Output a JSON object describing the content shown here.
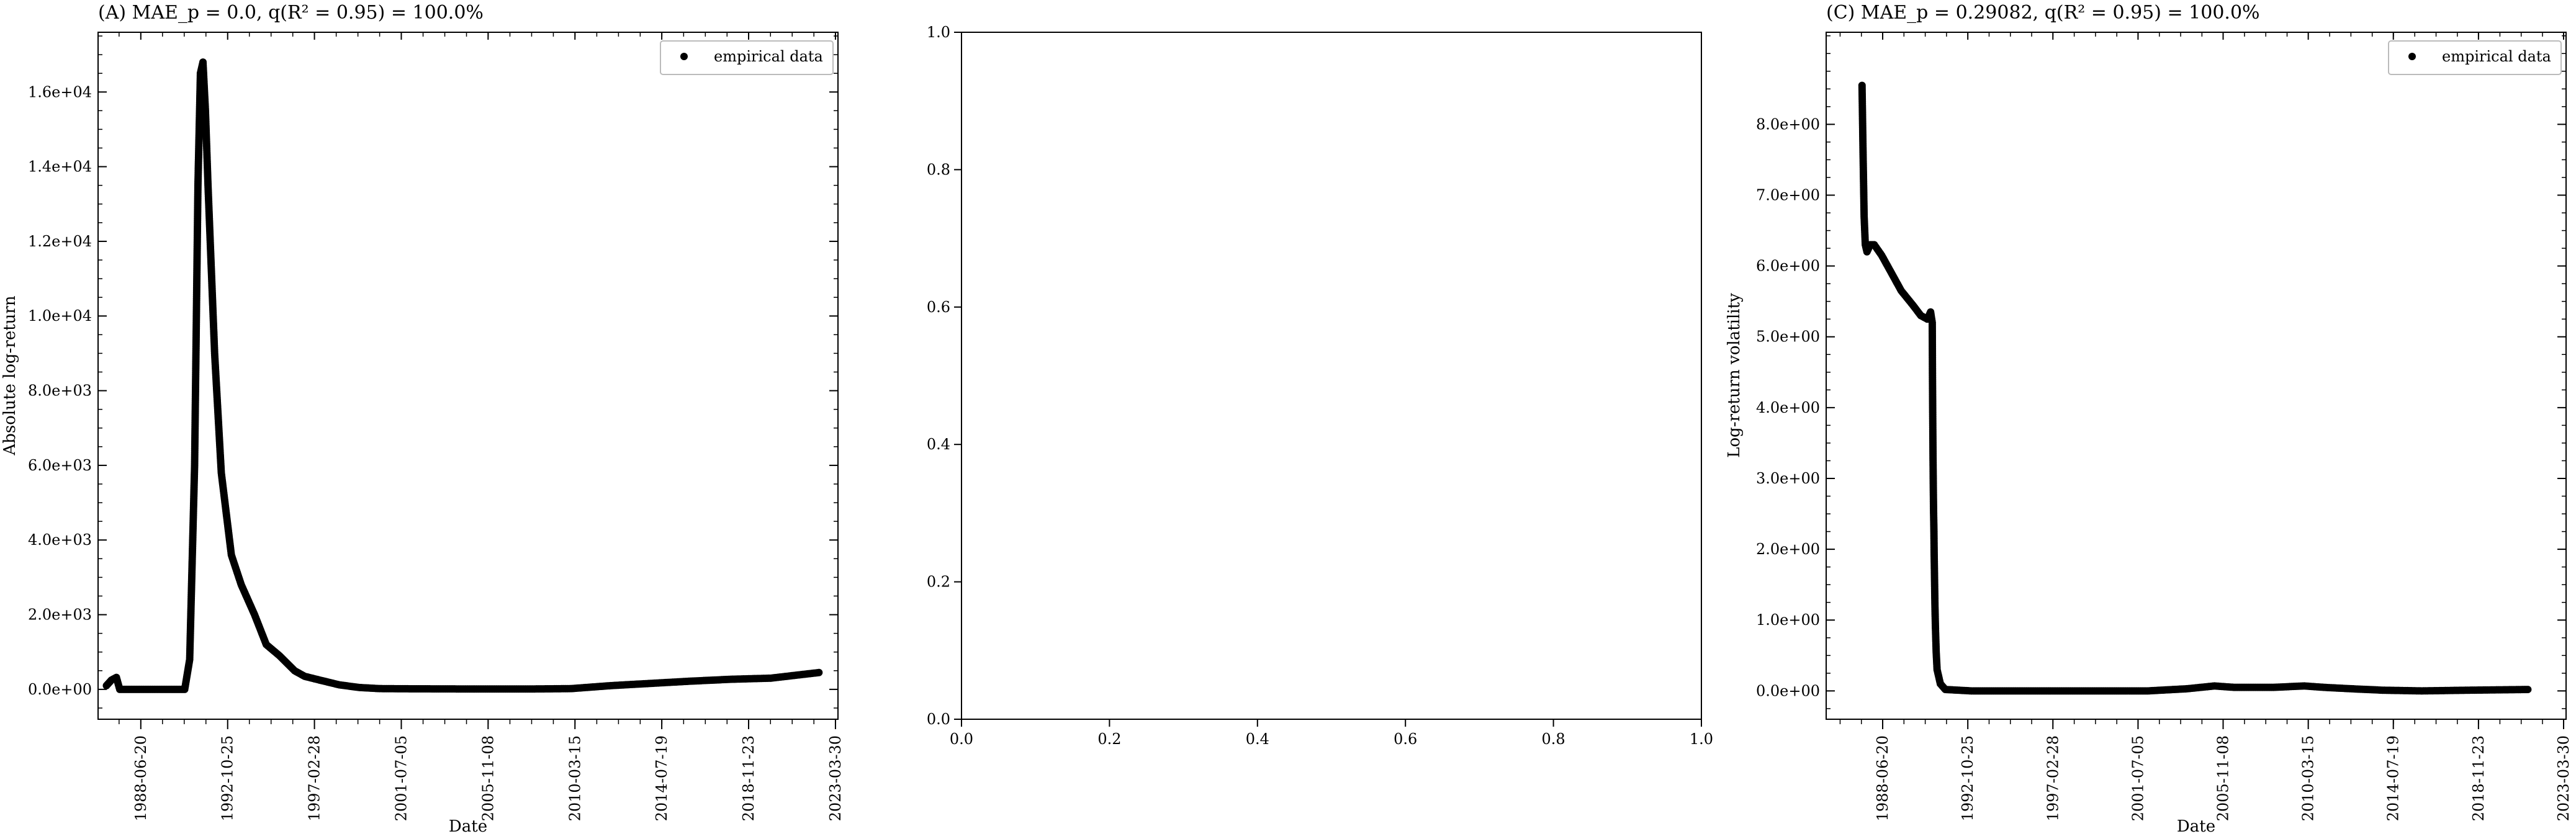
{
  "chart_data": [
    {
      "type": "scatter",
      "title": "(A) MAE_p = 0.0, q(R² = 0.95) = 100.0%",
      "xlabel": "Date",
      "ylabel": "Absolute log-return",
      "x_ticks": [
        "1988-06-20",
        "1992-10-25",
        "1997-02-28",
        "2001-07-05",
        "2005-11-08",
        "2010-03-15",
        "2014-07-19",
        "2018-11-23",
        "2023-03-30"
      ],
      "y_ticks": [
        "0.0e+00",
        "2.0e+03",
        "4.0e+03",
        "6.0e+03",
        "8.0e+03",
        "1.0e+04",
        "1.2e+04",
        "1.4e+04",
        "1.6e+04"
      ],
      "xlim": [
        "1986-05-01",
        "2023-05-15"
      ],
      "ylim": [
        -800,
        17600
      ],
      "legend": {
        "entry": "empirical data",
        "position": "top-right"
      },
      "series": [
        {
          "name": "empirical data",
          "points": [
            [
              "1986-10-01",
              100
            ],
            [
              "1987-01-01",
              250
            ],
            [
              "1987-04-01",
              320
            ],
            [
              "1987-06-01",
              0
            ],
            [
              "1987-09-01",
              0
            ],
            [
              "1988-06-01",
              0
            ],
            [
              "1989-06-01",
              0
            ],
            [
              "1990-01-01",
              0
            ],
            [
              "1990-06-01",
              0
            ],
            [
              "1990-09-01",
              0
            ],
            [
              "1990-12-01",
              800
            ],
            [
              "1991-03-01",
              6000
            ],
            [
              "1991-05-01",
              13500
            ],
            [
              "1991-06-15",
              16500
            ],
            [
              "1991-08-01",
              16800
            ],
            [
              "1991-09-15",
              15500
            ],
            [
              "1991-11-01",
              13500
            ],
            [
              "1992-03-01",
              9000
            ],
            [
              "1992-07-01",
              5800
            ],
            [
              "1993-01-01",
              3600
            ],
            [
              "1993-07-01",
              2800
            ],
            [
              "1994-03-01",
              2000
            ],
            [
              "1994-10-01",
              1200
            ],
            [
              "1995-06-01",
              900
            ],
            [
              "1996-03-01",
              500
            ],
            [
              "1996-09-01",
              350
            ],
            [
              "1997-06-01",
              250
            ],
            [
              "1998-06-01",
              120
            ],
            [
              "1999-06-01",
              50
            ],
            [
              "2000-06-01",
              20
            ],
            [
              "2002-01-01",
              15
            ],
            [
              "2005-01-01",
              10
            ],
            [
              "2008-01-01",
              10
            ],
            [
              "2010-01-01",
              20
            ],
            [
              "2012-01-01",
              100
            ],
            [
              "2014-01-01",
              160
            ],
            [
              "2016-01-01",
              220
            ],
            [
              "2018-01-01",
              270
            ],
            [
              "2020-01-01",
              300
            ],
            [
              "2022-06-01",
              450
            ]
          ]
        }
      ]
    },
    {
      "type": "scatter",
      "title": "",
      "xlabel": "",
      "ylabel": "",
      "x_ticks": [
        "0.0",
        "0.2",
        "0.4",
        "0.6",
        "0.8",
        "1.0"
      ],
      "y_ticks": [
        "0.0",
        "0.2",
        "0.4",
        "0.6",
        "0.8",
        "1.0"
      ],
      "xlim": [
        0,
        1
      ],
      "ylim": [
        0,
        1
      ],
      "series": []
    },
    {
      "type": "scatter",
      "title": "(C) MAE_p = 0.29082, q(R² = 0.95) = 100.0%",
      "xlabel": "Date",
      "ylabel": "Log-return volatility",
      "x_ticks": [
        "1988-06-20",
        "1992-10-25",
        "1997-02-28",
        "2001-07-05",
        "2005-11-08",
        "2010-03-15",
        "2014-07-19",
        "2018-11-23",
        "2023-03-30"
      ],
      "y_ticks": [
        "0.0e+00",
        "1.0e+00",
        "2.0e+00",
        "3.0e+00",
        "4.0e+00",
        "5.0e+00",
        "6.0e+00",
        "7.0e+00",
        "8.0e+00"
      ],
      "xlim": [
        "1985-08-01",
        "2023-05-15"
      ],
      "ylim": [
        -0.4,
        9.3
      ],
      "legend": {
        "entry": "empirical data",
        "position": "top-right"
      },
      "series": [
        {
          "name": "empirical data",
          "points": [
            [
              "1987-06-01",
              8.55
            ],
            [
              "1987-06-20",
              7.6
            ],
            [
              "1987-07-10",
              6.7
            ],
            [
              "1987-08-01",
              6.3
            ],
            [
              "1987-09-01",
              6.2
            ],
            [
              "1987-11-01",
              6.3
            ],
            [
              "1988-01-15",
              6.3
            ],
            [
              "1988-06-01",
              6.15
            ],
            [
              "1988-12-01",
              5.9
            ],
            [
              "1989-06-01",
              5.65
            ],
            [
              "1990-01-01",
              5.45
            ],
            [
              "1990-06-01",
              5.3
            ],
            [
              "1990-10-01",
              5.25
            ],
            [
              "1990-12-01",
              5.35
            ],
            [
              "1991-01-01",
              5.2
            ],
            [
              "1991-01-05",
              4.45
            ],
            [
              "1991-01-10",
              3.85
            ],
            [
              "1991-01-15",
              3.3
            ],
            [
              "1991-01-20",
              2.9
            ],
            [
              "1991-01-25",
              2.55
            ],
            [
              "1991-02-01",
              2.25
            ],
            [
              "1991-02-05",
              1.95
            ],
            [
              "1991-02-10",
              1.7
            ],
            [
              "1991-02-15",
              1.45
            ],
            [
              "1991-02-20",
              1.2
            ],
            [
              "1991-03-01",
              0.9
            ],
            [
              "1991-03-15",
              0.55
            ],
            [
              "1991-04-01",
              0.3
            ],
            [
              "1991-06-01",
              0.1
            ],
            [
              "1991-09-01",
              0.02
            ],
            [
              "1993-01-01",
              0.0
            ],
            [
              "1996-01-01",
              0.0
            ],
            [
              "1999-01-01",
              0.0
            ],
            [
              "2002-01-01",
              0.0
            ],
            [
              "2004-01-01",
              0.03
            ],
            [
              "2005-06-01",
              0.07
            ],
            [
              "2006-06-01",
              0.05
            ],
            [
              "2008-06-01",
              0.05
            ],
            [
              "2010-01-01",
              0.07
            ],
            [
              "2011-01-01",
              0.05
            ],
            [
              "2012-06-01",
              0.03
            ],
            [
              "2014-01-01",
              0.01
            ],
            [
              "2016-01-01",
              0.0
            ],
            [
              "2018-06-01",
              0.01
            ],
            [
              "2021-06-01",
              0.02
            ]
          ]
        }
      ]
    }
  ]
}
